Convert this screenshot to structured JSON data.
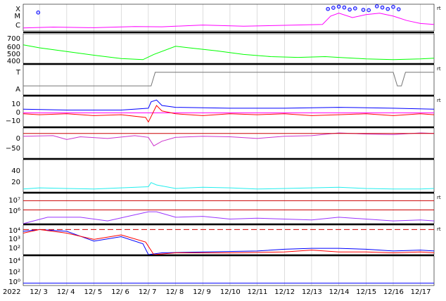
{
  "chart_data": {
    "type": "line",
    "year_label": "2022",
    "x_tick_labels": [
      "12/ 3",
      "12/ 4",
      "12/ 5",
      "12/ 6",
      "12/ 7",
      "12/ 8",
      "12/ 9",
      "12/10",
      "12/11",
      "12/12",
      "12/13",
      "12/14",
      "12/15",
      "12/16",
      "12/17"
    ],
    "x_range_days": [
      2.4,
      17.5
    ],
    "grid": true,
    "colors": {
      "magenta": "#ff00ff",
      "green": "#00ff00",
      "lightblue": "#aee8ff",
      "pink": "#ffaaee",
      "blue": "#0000ff",
      "red": "#ff0000",
      "purple": "#cc55ff",
      "cyan": "#22eeee",
      "darkpurple": "#9933ff",
      "gray": "#777777"
    },
    "panels": [
      {
        "name": "xray-flare",
        "y_tick_labels": [
          "X",
          "M",
          "C"
        ],
        "edge_label": "rt",
        "series": [
          {
            "name": "",
            "color": "#ff00ff",
            "values": [
              [
                2.4,
                1
              ],
              [
                3.5,
                1.3
              ],
              [
                5,
                1.1
              ],
              [
                6.5,
                1.5
              ],
              [
                7.5,
                1.4
              ],
              [
                9,
                2
              ],
              [
                10.5,
                1.6
              ],
              [
                12,
                1.9
              ],
              [
                13.4,
                2.2
              ],
              [
                13.7,
                5
              ],
              [
                14,
                6
              ],
              [
                14.5,
                4.5
              ],
              [
                15,
                5.5
              ],
              [
                15.5,
                6
              ],
              [
                16,
                5
              ],
              [
                16.5,
                3.5
              ],
              [
                17,
                2.5
              ],
              [
                17.5,
                2.2
              ]
            ]
          }
        ],
        "markers": [
          [
            2.95,
            6.2
          ],
          [
            13.6,
            7.4
          ],
          [
            13.8,
            7.8
          ],
          [
            14.0,
            8.2
          ],
          [
            14.2,
            7.9
          ],
          [
            14.4,
            7.2
          ],
          [
            14.6,
            7.6
          ],
          [
            14.9,
            7.1
          ],
          [
            15.1,
            7.0
          ],
          [
            15.4,
            8.3
          ],
          [
            15.6,
            7.9
          ],
          [
            15.8,
            7.4
          ],
          [
            16.0,
            8.1
          ],
          [
            16.2,
            7.3
          ]
        ]
      },
      {
        "name": "solar-wind-speed",
        "y_tick_labels": [
          "700",
          "600",
          "500",
          "400"
        ],
        "y_range": [
          350,
          750
        ],
        "series": [
          {
            "name": "",
            "color": "#00ff00",
            "values": [
              [
                2.4,
                600
              ],
              [
                3,
                560
              ],
              [
                4,
                510
              ],
              [
                5,
                460
              ],
              [
                6,
                415
              ],
              [
                6.8,
                400
              ],
              [
                7.2,
                470
              ],
              [
                8,
                580
              ],
              [
                8.5,
                560
              ],
              [
                9.5,
                520
              ],
              [
                10.5,
                470
              ],
              [
                11.5,
                440
              ],
              [
                12.5,
                430
              ],
              [
                13.5,
                440
              ],
              [
                14,
                430
              ],
              [
                15,
                410
              ],
              [
                16,
                400
              ],
              [
                17,
                410
              ],
              [
                17.5,
                420
              ]
            ]
          }
        ]
      },
      {
        "name": "particle-state",
        "y_tick_labels": [
          "T",
          "A"
        ],
        "edge_label": "rt",
        "series": [
          {
            "name": "",
            "color": "#777777",
            "values": [
              [
                2.4,
                0.3
              ],
              [
                7.1,
                0.3
              ],
              [
                7.25,
                0.75
              ],
              [
                16.0,
                0.75
              ],
              [
                16.15,
                0.3
              ],
              [
                16.3,
                0.3
              ],
              [
                16.45,
                0.75
              ],
              [
                17.5,
                0.75
              ]
            ]
          }
        ]
      },
      {
        "name": "magnetic-field",
        "y_tick_labels": [
          "10",
          "0",
          "−10"
        ],
        "y_range": [
          -15,
          18
        ],
        "edge_label": "rt",
        "series": [
          {
            "name": "",
            "color": "#0000ff",
            "values": [
              [
                2.4,
                4
              ],
              [
                4,
                3
              ],
              [
                6,
                3
              ],
              [
                7,
                5
              ],
              [
                7.1,
                12
              ],
              [
                7.3,
                14
              ],
              [
                7.5,
                8
              ],
              [
                8,
                6
              ],
              [
                10,
                5
              ],
              [
                12,
                5
              ],
              [
                14,
                6
              ],
              [
                16,
                5
              ],
              [
                17.5,
                4
              ]
            ]
          },
          {
            "name": "",
            "color": "#ff00ff",
            "values": [
              [
                2.4,
                0
              ],
              [
                17.5,
                0
              ]
            ]
          },
          {
            "name": "",
            "color": "#ff0000",
            "values": [
              [
                2.4,
                -1
              ],
              [
                3,
                -2
              ],
              [
                4,
                -1
              ],
              [
                5,
                -3
              ],
              [
                6,
                -2
              ],
              [
                6.9,
                -5
              ],
              [
                7.0,
                -10
              ],
              [
                7.1,
                -4
              ],
              [
                7.3,
                8
              ],
              [
                7.5,
                2
              ],
              [
                8,
                -1
              ],
              [
                9,
                -3
              ],
              [
                10,
                -1
              ],
              [
                11,
                -2
              ],
              [
                12,
                -1
              ],
              [
                13,
                -3
              ],
              [
                14,
                -2
              ],
              [
                15,
                -1
              ],
              [
                16,
                -3
              ],
              [
                17,
                -1
              ],
              [
                17.5,
                -2
              ]
            ]
          }
        ]
      },
      {
        "name": "dst-index",
        "y_tick_labels": [
          "0",
          "−50"
        ],
        "y_range": [
          -90,
          20
        ],
        "series": [
          {
            "name": "",
            "color": "#cc33cc",
            "values": [
              [
                2.4,
                -10
              ],
              [
                3.5,
                -8
              ],
              [
                4.0,
                -22
              ],
              [
                4.5,
                -12
              ],
              [
                5.5,
                -18
              ],
              [
                6.5,
                -8
              ],
              [
                7.0,
                -14
              ],
              [
                7.2,
                -45
              ],
              [
                7.5,
                -28
              ],
              [
                8,
                -14
              ],
              [
                9,
                -10
              ],
              [
                10,
                -12
              ],
              [
                11,
                -18
              ],
              [
                12,
                -10
              ],
              [
                13,
                -8
              ],
              [
                14,
                2
              ],
              [
                15,
                -2
              ],
              [
                16,
                -4
              ],
              [
                17,
                2
              ],
              [
                17.5,
                0
              ]
            ]
          },
          {
            "name": "",
            "color": "#cc0000",
            "values": [
              [
                2.4,
                0
              ],
              [
                17.5,
                0
              ]
            ]
          }
        ]
      },
      {
        "name": "geomagnetic-activity",
        "y_tick_labels": [
          "40",
          "20"
        ],
        "y_range": [
          0,
          55
        ],
        "series": [
          {
            "name": "",
            "color": "#22eeee",
            "values": [
              [
                2.4,
                5
              ],
              [
                3,
                7
              ],
              [
                4,
                6
              ],
              [
                5,
                5
              ],
              [
                6,
                7
              ],
              [
                7,
                9
              ],
              [
                7.1,
                16
              ],
              [
                7.3,
                12
              ],
              [
                8,
                6
              ],
              [
                9,
                8
              ],
              [
                10,
                7
              ],
              [
                11,
                5
              ],
              [
                12,
                6
              ],
              [
                13,
                7
              ],
              [
                14,
                8
              ],
              [
                15,
                6
              ],
              [
                16,
                5
              ],
              [
                17,
                5
              ],
              [
                17.5,
                6
              ]
            ]
          }
        ]
      },
      {
        "name": "high-energy-electrons",
        "y_tick_labels": [
          "10⁷",
          "10⁶"
        ],
        "y_range": [
          4.5,
          7.8
        ],
        "edge_label": "rt",
        "series": [
          {
            "name": "",
            "color": "#9933ff",
            "values": [
              [
                2.4,
                4.5
              ],
              [
                3.3,
                5.2
              ],
              [
                4.5,
                5.2
              ],
              [
                5.5,
                4.8
              ],
              [
                7,
                5.8
              ],
              [
                7.3,
                5.8
              ],
              [
                8,
                5.2
              ],
              [
                9,
                5.3
              ],
              [
                10,
                5.0
              ],
              [
                11,
                5.1
              ],
              [
                12,
                5.0
              ],
              [
                13,
                4.9
              ],
              [
                14,
                5.2
              ],
              [
                15,
                5.0
              ],
              [
                16,
                4.8
              ],
              [
                17,
                4.9
              ],
              [
                17.5,
                4.8
              ]
            ]
          },
          {
            "name": "",
            "color": "#cc0000",
            "values": [
              [
                2.4,
                7
              ],
              [
                17.5,
                7
              ]
            ]
          },
          {
            "name": "",
            "color": "#cc0000",
            "values": [
              [
                2.4,
                6
              ],
              [
                17.5,
                6
              ]
            ]
          }
        ]
      },
      {
        "name": "proton-flux",
        "y_tick_labels": [
          "10⁴",
          "10³",
          "10²"
        ],
        "y_range": [
          1.2,
          4.5
        ],
        "edge_label": "rt",
        "series": [
          {
            "name": "",
            "color": "#0000ff",
            "values": [
              [
                2.4,
                3.8
              ],
              [
                3,
                4.0
              ],
              [
                4,
                3.8
              ],
              [
                5,
                2.7
              ],
              [
                6,
                3.2
              ],
              [
                6.8,
                2.4
              ],
              [
                7.0,
                1.2
              ],
              [
                7.5,
                1.4
              ],
              [
                9,
                1.5
              ],
              [
                11,
                1.6
              ],
              [
                12,
                1.8
              ],
              [
                13,
                1.9
              ],
              [
                14,
                1.9
              ],
              [
                15,
                1.8
              ],
              [
                16,
                1.6
              ],
              [
                17,
                1.7
              ],
              [
                17.5,
                1.6
              ]
            ]
          },
          {
            "name": "",
            "color": "#ff0000",
            "values": [
              [
                2.4,
                3.6
              ],
              [
                3,
                4.0
              ],
              [
                4,
                3.6
              ],
              [
                5,
                2.9
              ],
              [
                6,
                3.4
              ],
              [
                6.9,
                2.6
              ],
              [
                7.2,
                1.2
              ],
              [
                8,
                1.4
              ],
              [
                10,
                1.4
              ],
              [
                12,
                1.5
              ],
              [
                13,
                1.7
              ],
              [
                14,
                1.5
              ],
              [
                15,
                1.5
              ],
              [
                16,
                1.4
              ],
              [
                17,
                1.5
              ],
              [
                17.5,
                1.4
              ]
            ]
          },
          {
            "name": "",
            "color": "#cc0000",
            "dashed": true,
            "values": [
              [
                2.4,
                4
              ],
              [
                17.5,
                4
              ]
            ]
          }
        ]
      },
      {
        "name": "background-flux",
        "y_tick_labels": [
          "10⁴",
          "10²",
          "10⁰"
        ],
        "y_range": [
          -0.5,
          4.5
        ],
        "series": [
          {
            "name": "",
            "color": "#0000ff",
            "values": [
              [
                2.4,
                -0.1
              ],
              [
                17.5,
                -0.1
              ]
            ]
          }
        ]
      }
    ]
  }
}
